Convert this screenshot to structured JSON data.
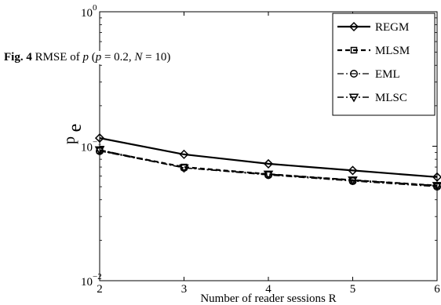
{
  "caption": {
    "label": "Fig. 4",
    "text_plain": " RMSE of ",
    "var_p": "p",
    "paren_open": " (",
    "var_p2": "p",
    "eq_p": " = 0.2, ",
    "var_n": "N",
    "eq_n": " = 10)"
  },
  "chart_data": {
    "type": "line",
    "title": "",
    "xlabel": "Number of reader sessions R",
    "ylabel_main": "e",
    "ylabel_sub": "p",
    "yscale": "log",
    "xlim": [
      2,
      6
    ],
    "ylim": [
      0.01,
      1
    ],
    "x_ticks": [
      "2",
      "3",
      "4",
      "5",
      "6"
    ],
    "y_ticks": [
      {
        "base": "10",
        "exp": "−2",
        "value": 0.01
      },
      {
        "base": "10",
        "exp": "−1",
        "value": 0.1
      },
      {
        "base": "10",
        "exp": "0",
        "value": 1
      }
    ],
    "legend_position": "top-right",
    "x": [
      2,
      3,
      4,
      5,
      6
    ],
    "series": [
      {
        "name": "REGM",
        "values": [
          0.115,
          0.087,
          0.074,
          0.066,
          0.059
        ],
        "style": "solid",
        "marker": "diamond",
        "width": 2.2
      },
      {
        "name": "MLSM",
        "values": [
          0.093,
          0.07,
          0.062,
          0.056,
          0.051
        ],
        "style": "dashed",
        "marker": "square",
        "width": 2.2
      },
      {
        "name": "EML",
        "values": [
          0.092,
          0.069,
          0.061,
          0.055,
          0.05
        ],
        "style": "dashdot",
        "marker": "circle",
        "width": 1.2
      },
      {
        "name": "MLSC",
        "values": [
          0.094,
          0.069,
          0.062,
          0.056,
          0.051
        ],
        "style": "dashdot",
        "marker": "triangle",
        "width": 1.6
      }
    ]
  }
}
